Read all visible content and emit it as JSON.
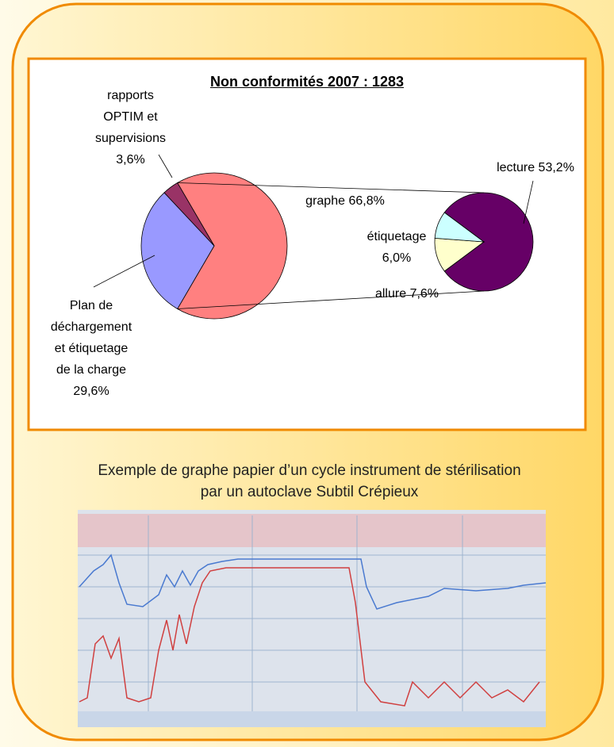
{
  "chart_data": {
    "type": "pie-of-pie",
    "title": "Non conformités 2007 : 1283",
    "categories": [
      "graphe",
      "Plan de déchargement et étiquetage de la charge",
      "rapports OPTIM et supervisions"
    ],
    "values": [
      66.8,
      29.6,
      3.6
    ],
    "value_labels": [
      "66,8%",
      "29,6%",
      "3,6%"
    ],
    "colors": [
      "#ff8080",
      "#9999ff",
      "#993366"
    ],
    "sub": {
      "categories": [
        "lecture",
        "allure",
        "étiquetage"
      ],
      "values": [
        53.2,
        7.6,
        6.0
      ],
      "value_labels": [
        "53,2%",
        "7,6%",
        "6,0%"
      ],
      "colors": [
        "#660066",
        "#ffffcc",
        "#ccffff"
      ]
    }
  },
  "caption": "Exemple de graphe papier d’un cycle instrument de stérilisation par un autoclave Subtil Crépieux"
}
